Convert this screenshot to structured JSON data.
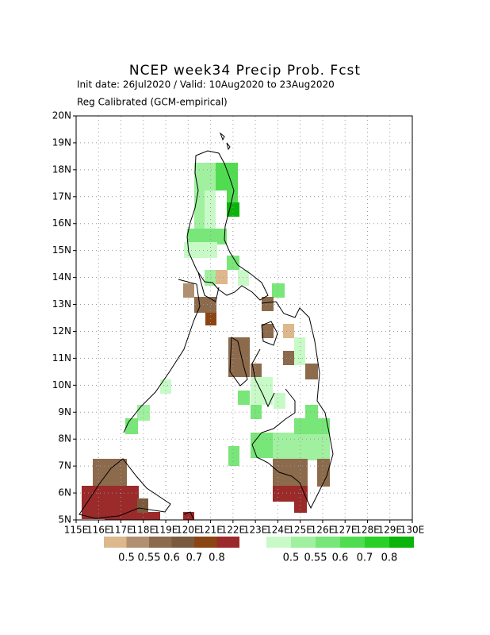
{
  "map": {
    "title": "NCEP week34 Precip Prob. Fcst",
    "subtitle": "Init date: 26Jul2020 / Valid: 10Aug2020 to 23Aug2020",
    "method": "Reg Calibrated (GCM-empirical)",
    "xlim": [
      115,
      130
    ],
    "ylim": [
      5,
      20
    ],
    "xticks": [
      {
        "value": 115,
        "label": "115E"
      },
      {
        "value": 116,
        "label": "116E"
      },
      {
        "value": 117,
        "label": "117E"
      },
      {
        "value": 118,
        "label": "118E"
      },
      {
        "value": 119,
        "label": "119E"
      },
      {
        "value": 120,
        "label": "120E"
      },
      {
        "value": 121,
        "label": "121E"
      },
      {
        "value": 122,
        "label": "122E"
      },
      {
        "value": 123,
        "label": "123E"
      },
      {
        "value": 124,
        "label": "124E"
      },
      {
        "value": 125,
        "label": "125E"
      },
      {
        "value": 126,
        "label": "126E"
      },
      {
        "value": 127,
        "label": "127E"
      },
      {
        "value": 128,
        "label": "128E"
      },
      {
        "value": 129,
        "label": "129E"
      },
      {
        "value": 130,
        "label": "130E"
      }
    ],
    "yticks": [
      {
        "value": 5,
        "label": "5N"
      },
      {
        "value": 6,
        "label": "6N"
      },
      {
        "value": 7,
        "label": "7N"
      },
      {
        "value": 8,
        "label": "8N"
      },
      {
        "value": 9,
        "label": "9N"
      },
      {
        "value": 10,
        "label": "10N"
      },
      {
        "value": 11,
        "label": "11N"
      },
      {
        "value": 12,
        "label": "12N"
      },
      {
        "value": 13,
        "label": "13N"
      },
      {
        "value": 14,
        "label": "14N"
      },
      {
        "value": 15,
        "label": "15N"
      },
      {
        "value": 16,
        "label": "16N"
      },
      {
        "value": 17,
        "label": "17N"
      },
      {
        "value": 18,
        "label": "18N"
      },
      {
        "value": 19,
        "label": "19N"
      },
      {
        "value": 20,
        "label": "20N"
      }
    ],
    "grid": true
  },
  "legend": {
    "below_labels": [
      "0.5",
      "0.55",
      "0.6",
      "0.7",
      "0.8"
    ],
    "above_labels": [
      "0.5",
      "0.55",
      "0.6",
      "0.7",
      "0.8"
    ]
  }
}
